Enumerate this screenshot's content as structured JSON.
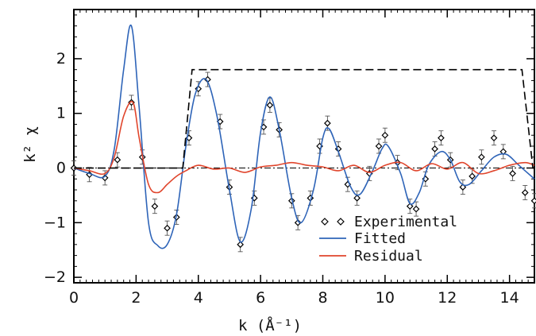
{
  "chart_data": {
    "type": "line",
    "xlabel": "k (Å⁻¹)",
    "ylabel": "k² χ",
    "xlim": [
      0,
      14.8
    ],
    "ylim": [
      -2.1,
      2.9
    ],
    "xticks": [
      0,
      2,
      4,
      6,
      8,
      10,
      12,
      14
    ],
    "yticks": [
      -2,
      -1,
      0,
      1,
      2
    ],
    "grid": false,
    "legend": "bottom-right",
    "series": [
      {
        "name": "Experimental",
        "style": "diamond-markers-with-error-bars",
        "color": "#000000",
        "x": [
          0.0,
          0.5,
          1.0,
          1.4,
          1.85,
          2.2,
          2.6,
          3.0,
          3.3,
          3.7,
          4.0,
          4.3,
          4.7,
          5.0,
          5.35,
          5.8,
          6.1,
          6.3,
          6.6,
          7.0,
          7.2,
          7.6,
          7.9,
          8.15,
          8.5,
          8.8,
          9.1,
          9.5,
          9.8,
          10.0,
          10.4,
          10.8,
          11.0,
          11.3,
          11.6,
          11.8,
          12.1,
          12.5,
          12.8,
          13.1,
          13.5,
          13.8,
          14.1,
          14.5,
          14.8
        ],
        "y": [
          0.0,
          -0.12,
          -0.18,
          0.15,
          1.2,
          0.2,
          -0.7,
          -1.1,
          -0.9,
          0.55,
          1.45,
          1.62,
          0.85,
          -0.35,
          -1.4,
          -0.55,
          0.75,
          1.15,
          0.7,
          -0.6,
          -1.0,
          -0.55,
          0.4,
          0.82,
          0.35,
          -0.3,
          -0.55,
          -0.1,
          0.4,
          0.6,
          0.1,
          -0.7,
          -0.75,
          -0.2,
          0.35,
          0.55,
          0.15,
          -0.35,
          -0.15,
          0.2,
          0.55,
          0.3,
          -0.1,
          -0.45,
          -0.6
        ]
      },
      {
        "name": "Fitted",
        "style": "solid",
        "color": "#2e64b8",
        "x": [
          0.0,
          0.5,
          1.0,
          1.3,
          1.6,
          1.85,
          2.1,
          2.4,
          2.7,
          3.0,
          3.3,
          3.6,
          3.9,
          4.25,
          4.6,
          5.0,
          5.35,
          5.7,
          6.0,
          6.3,
          6.6,
          7.0,
          7.3,
          7.7,
          8.0,
          8.2,
          8.5,
          8.9,
          9.2,
          9.6,
          9.9,
          10.1,
          10.5,
          10.8,
          11.1,
          11.4,
          11.8,
          12.1,
          12.4,
          12.7,
          13.1,
          13.5,
          13.9,
          14.3,
          14.8
        ],
        "y": [
          0.0,
          -0.1,
          -0.15,
          0.35,
          1.8,
          2.6,
          1.1,
          -1.0,
          -1.42,
          -1.4,
          -0.85,
          0.4,
          1.35,
          1.62,
          0.95,
          -0.4,
          -1.35,
          -0.75,
          0.65,
          1.3,
          0.7,
          -0.55,
          -1.0,
          -0.4,
          0.55,
          0.72,
          0.3,
          -0.35,
          -0.48,
          -0.05,
          0.35,
          0.4,
          -0.1,
          -0.65,
          -0.45,
          0.05,
          0.3,
          0.15,
          -0.25,
          -0.3,
          -0.05,
          0.2,
          0.25,
          0.05,
          -0.2
        ]
      },
      {
        "name": "Residual",
        "style": "solid",
        "color": "#e0452c",
        "x": [
          0.0,
          0.5,
          1.0,
          1.3,
          1.6,
          1.9,
          2.1,
          2.4,
          2.7,
          3.0,
          3.3,
          3.6,
          4.0,
          4.5,
          5.0,
          5.5,
          6.0,
          6.5,
          7.0,
          7.5,
          8.0,
          8.5,
          9.0,
          9.5,
          10.0,
          10.5,
          11.0,
          11.5,
          12.0,
          12.5,
          13.0,
          13.5,
          14.0,
          14.5,
          14.8
        ],
        "y": [
          0.0,
          -0.05,
          -0.1,
          0.2,
          0.95,
          1.2,
          0.55,
          -0.3,
          -0.45,
          -0.3,
          -0.15,
          -0.05,
          0.05,
          -0.02,
          0.0,
          -0.08,
          0.02,
          0.05,
          0.1,
          0.05,
          0.02,
          -0.05,
          0.05,
          -0.08,
          0.05,
          0.1,
          -0.05,
          0.08,
          -0.02,
          0.1,
          -0.1,
          -0.05,
          0.05,
          0.1,
          0.05
        ]
      },
      {
        "style": "dashed",
        "color": "#000000",
        "x": [
          0.0,
          3.5,
          3.8,
          14.4,
          14.75,
          14.8
        ],
        "y": [
          0.0,
          0.0,
          1.8,
          1.8,
          0.0,
          0.0
        ]
      }
    ]
  },
  "legend": {
    "items": [
      {
        "label": "Experimental",
        "symbol": "diamond",
        "color": "#000000"
      },
      {
        "label": "Fitted",
        "symbol": "line",
        "color": "#2e64b8"
      },
      {
        "label": "Residual",
        "symbol": "line",
        "color": "#e0452c"
      }
    ]
  }
}
